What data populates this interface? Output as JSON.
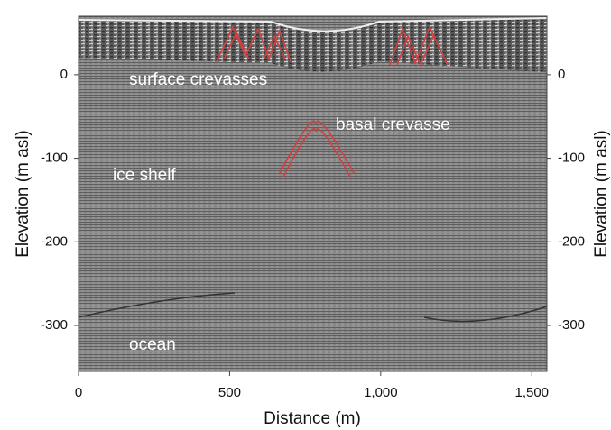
{
  "chart_data": {
    "type": "radargram",
    "xlabel": "Distance (m)",
    "ylabel": "Elevation (m asl)",
    "y2label": "Elevation (m asl)",
    "xlim": [
      0,
      1550
    ],
    "xticks": [
      0,
      500,
      {
        "value": 1000,
        "label": "1,000"
      },
      {
        "value": 1500,
        "label": "1,500"
      }
    ],
    "ylim": [
      -355,
      70
    ],
    "yticks": [
      0,
      -100,
      -200,
      -300
    ],
    "y2lim": [
      -355,
      70
    ],
    "y2ticks": [
      0,
      -100,
      -200,
      -300
    ],
    "annotations": [
      "surface crevasses",
      "basal crevasse",
      "ice shelf",
      "ocean"
    ]
  }
}
